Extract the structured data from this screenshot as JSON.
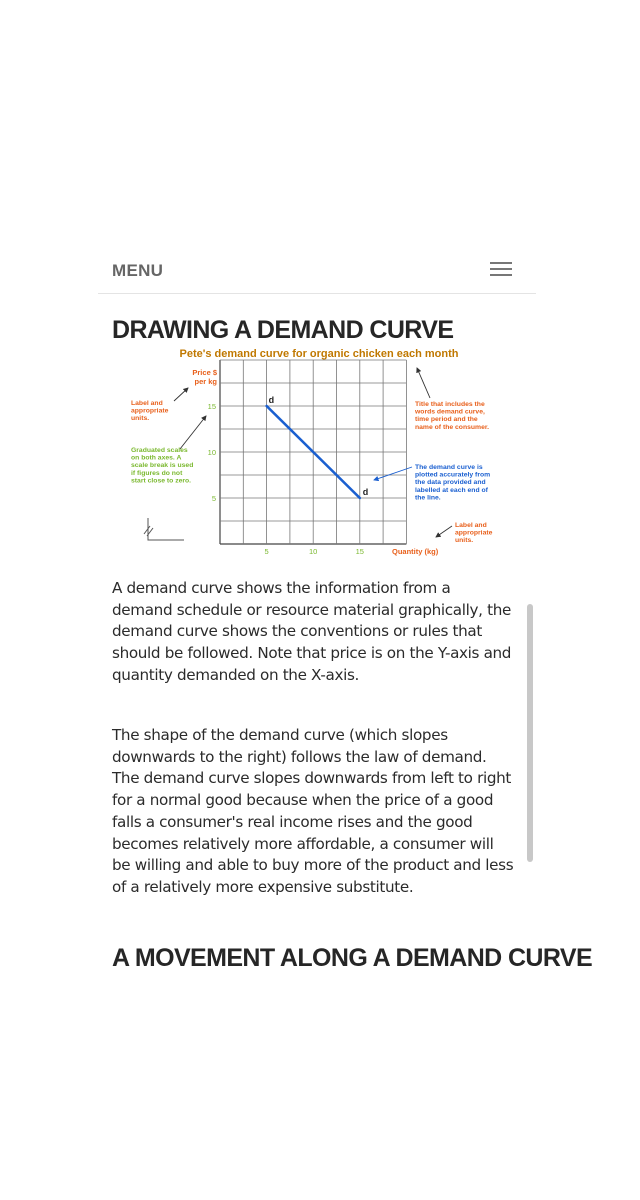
{
  "menu": {
    "label": "MENU",
    "toggle_icon": "hamburger-icon"
  },
  "section1": {
    "heading": "DRAWING A DEMAND CURVE",
    "paragraph1": "A demand curve shows the information from a demand schedule or resource material graphically, the demand curve shows the conventions or rules that should be followed. Note that price is on the Y-axis and quantity demanded on the X-axis.",
    "paragraph2": "The shape of the demand curve (which slopes downwards to the right) follows the law of demand. The demand curve slopes downwards from left to right for a normal good because when the price of a good falls a consumer's real income rises and the good becomes relatively more affordable, a consumer will be willing and able to buy more of the product and less of a relatively more expensive substitute."
  },
  "section2": {
    "heading": "A MOVEMENT ALONG A DEMAND CURVE"
  },
  "chart_data": {
    "type": "line",
    "title": "Pete's demand curve for organic chicken each month",
    "ylabel_line1": "Price $",
    "ylabel_line2": "per kg",
    "xlabel": "Quantity (kg)",
    "x_ticks": [
      5,
      10,
      15
    ],
    "y_ticks": [
      15,
      10,
      5
    ],
    "xlim": [
      0,
      20
    ],
    "ylim": [
      0,
      18
    ],
    "series": [
      {
        "name": "d",
        "points": [
          [
            5,
            15
          ],
          [
            15,
            5
          ]
        ],
        "color": "#1a5fd0"
      }
    ],
    "curve_label_start": "d",
    "curve_label_end": "d",
    "annotations": {
      "label_units_left": [
        "Label and",
        "appropriate",
        "units."
      ],
      "graduated_scales": [
        "Graduated scales",
        "on both axes. A",
        "scale break is used",
        "if figures do not",
        "start close to zero."
      ],
      "title_note": [
        "Title that includes the",
        "words demand curve,",
        "time period and the",
        "name of the consumer."
      ],
      "curve_note": [
        "The demand curve is",
        "plotted accurately from",
        "the data provided and",
        "labelled at each end of",
        "the line."
      ],
      "label_units_right": [
        "Label and",
        "appropriate",
        "units."
      ]
    },
    "colors": {
      "title": "#c07800",
      "orange": "#e8601c",
      "green": "#7ab82e",
      "blue": "#1a5fd0"
    }
  }
}
